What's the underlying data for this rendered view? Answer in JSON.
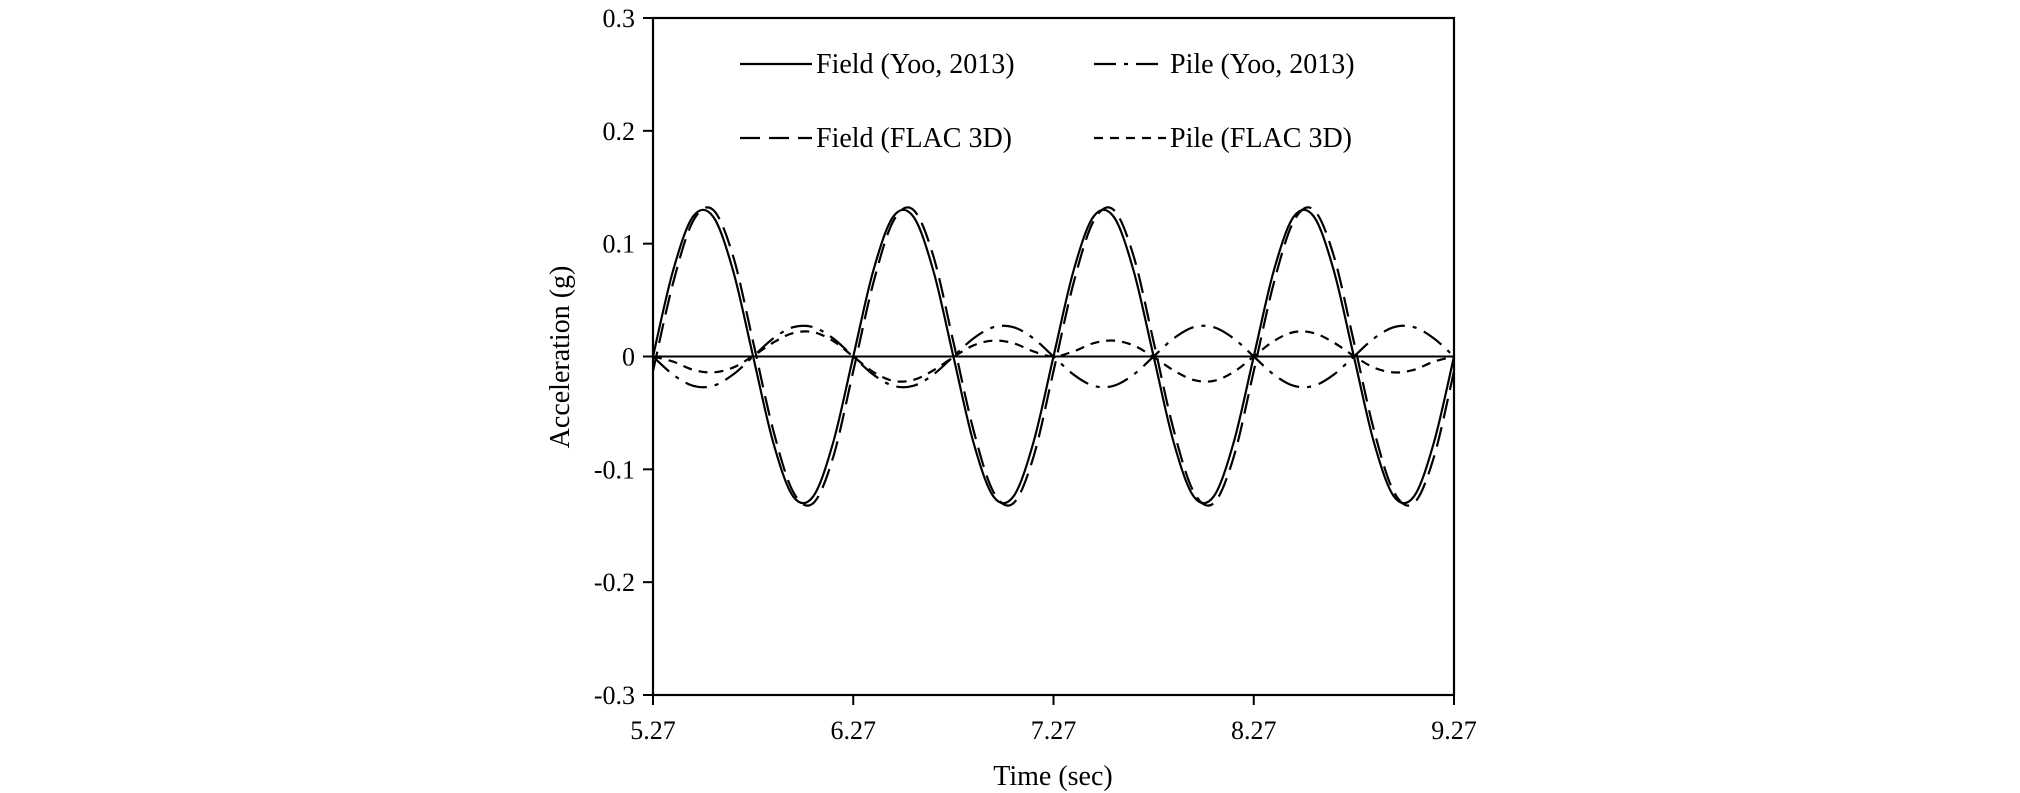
{
  "chart_data": {
    "type": "line",
    "title": "",
    "xlabel": "Time (sec)",
    "ylabel": "Acceleration (g)",
    "xlim": [
      5.27,
      9.27
    ],
    "ylim": [
      -0.3,
      0.3
    ],
    "x_ticks": [
      "5.27",
      "6.27",
      "7.27",
      "8.27",
      "9.27"
    ],
    "y_ticks": [
      "0.3",
      "0.2",
      "0.1",
      "0",
      "-0.1",
      "-0.2",
      "-0.3"
    ],
    "x_tick_values": [
      5.27,
      6.27,
      7.27,
      8.27,
      9.27
    ],
    "y_tick_values": [
      0.3,
      0.2,
      0.1,
      0,
      -0.1,
      -0.2,
      -0.3
    ],
    "zero_line": 0,
    "grid": false,
    "legend_position": "top",
    "series": [
      {
        "name": "Field (Yoo, 2013)",
        "style": "solid",
        "x": [
          5.27,
          5.37,
          5.47,
          5.57,
          5.67,
          5.77,
          5.87,
          5.97,
          6.07,
          6.17,
          6.27,
          6.37,
          6.47,
          6.57,
          6.67,
          6.77,
          6.87,
          6.97,
          7.07,
          7.17,
          7.27,
          7.37,
          7.47,
          7.57,
          7.67,
          7.77,
          7.87,
          7.97,
          8.07,
          8.17,
          8.27,
          8.37,
          8.47,
          8.57,
          8.67,
          8.77,
          8.87,
          8.97,
          9.07,
          9.17,
          9.27
        ],
        "values": [
          0.0,
          0.076,
          0.124,
          0.124,
          0.076,
          0.0,
          -0.076,
          -0.124,
          -0.124,
          -0.076,
          0.0,
          0.076,
          0.124,
          0.124,
          0.076,
          0.0,
          -0.076,
          -0.124,
          -0.124,
          -0.076,
          0.0,
          0.076,
          0.124,
          0.124,
          0.076,
          0.0,
          -0.076,
          -0.124,
          -0.124,
          -0.076,
          0.0,
          0.076,
          0.124,
          0.124,
          0.076,
          0.0,
          -0.076,
          -0.124,
          -0.124,
          -0.076,
          0.0
        ]
      },
      {
        "name": "Pile (Yoo, 2013)",
        "style": "dashdot",
        "x": [
          5.27,
          5.37,
          5.47,
          5.57,
          5.67,
          5.77,
          5.87,
          5.97,
          6.07,
          6.17,
          6.27,
          6.37,
          6.47,
          6.57,
          6.67,
          6.77,
          6.87,
          6.97,
          7.07,
          7.17,
          7.27,
          7.37,
          7.47,
          7.57,
          7.67,
          7.77,
          7.87,
          7.97,
          8.07,
          8.17,
          8.27,
          8.37,
          8.47,
          8.57,
          8.67,
          8.77,
          8.87,
          8.97,
          9.07,
          9.17,
          9.27
        ],
        "values": [
          0.0,
          -0.016,
          -0.026,
          -0.026,
          -0.016,
          0.0,
          0.016,
          0.026,
          0.026,
          0.016,
          0.0,
          -0.016,
          -0.026,
          -0.026,
          -0.016,
          0.0,
          0.016,
          0.026,
          0.026,
          0.016,
          0.0,
          -0.016,
          -0.026,
          -0.026,
          -0.016,
          0.0,
          0.016,
          0.026,
          0.026,
          0.016,
          0.0,
          -0.016,
          -0.026,
          -0.026,
          -0.016,
          0.0,
          0.016,
          0.026,
          0.026,
          0.016,
          0.0
        ]
      },
      {
        "name": "Field (FLAC 3D)",
        "style": "longdash",
        "x": [
          5.27,
          5.37,
          5.47,
          5.57,
          5.67,
          5.77,
          5.87,
          5.97,
          6.07,
          6.17,
          6.27,
          6.37,
          6.47,
          6.57,
          6.67,
          6.77,
          6.87,
          6.97,
          7.07,
          7.17,
          7.27,
          7.37,
          7.47,
          7.57,
          7.67,
          7.77,
          7.87,
          7.97,
          8.07,
          8.17,
          8.27,
          8.37,
          8.47,
          8.57,
          8.67,
          8.77,
          8.87,
          8.97,
          9.07,
          9.17,
          9.27
        ],
        "values": [
          -0.013,
          0.065,
          0.12,
          0.13,
          0.089,
          0.013,
          -0.065,
          -0.12,
          -0.13,
          -0.089,
          -0.013,
          0.065,
          0.12,
          0.13,
          0.089,
          0.013,
          -0.065,
          -0.12,
          -0.13,
          -0.089,
          -0.013,
          0.065,
          0.12,
          0.13,
          0.089,
          0.013,
          -0.065,
          -0.12,
          -0.13,
          -0.089,
          -0.013,
          0.065,
          0.12,
          0.13,
          0.089,
          0.013,
          -0.065,
          -0.12,
          -0.13,
          -0.089,
          -0.013
        ]
      },
      {
        "name": "Pile (FLAC 3D)",
        "style": "shortdash",
        "x": [
          5.27,
          5.37,
          5.47,
          5.57,
          5.67,
          5.77,
          5.87,
          5.97,
          6.07,
          6.17,
          6.27,
          6.37,
          6.47,
          6.57,
          6.67,
          6.77,
          6.87,
          6.97,
          7.07,
          7.17,
          7.27,
          7.37,
          7.47,
          7.57,
          7.67,
          7.77,
          7.87,
          7.97,
          8.07,
          8.17,
          8.27,
          8.37,
          8.47,
          8.57,
          8.67,
          8.77,
          8.87,
          8.97,
          9.07,
          9.17,
          9.27
        ],
        "values": [
          0.0,
          -0.0045,
          -0.0118,
          -0.0141,
          -0.0098,
          0.0005,
          0.0123,
          0.0208,
          0.0216,
          0.0137,
          0.0,
          -0.0137,
          -0.0216,
          -0.0208,
          -0.0123,
          -0.0005,
          0.0098,
          0.0141,
          0.0118,
          0.0045,
          0.0,
          0.0045,
          0.0118,
          0.0141,
          0.0098,
          -0.0005,
          -0.0123,
          -0.0208,
          -0.0216,
          -0.0137,
          0.0,
          0.0137,
          0.0216,
          0.0208,
          0.0123,
          0.0005,
          -0.0098,
          -0.0141,
          -0.0118,
          -0.0045,
          0.0
        ]
      }
    ]
  }
}
